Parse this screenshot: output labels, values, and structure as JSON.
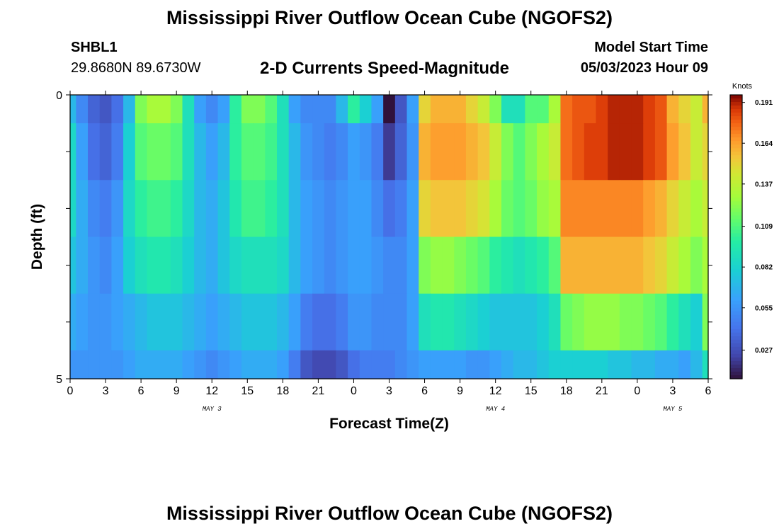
{
  "header": {
    "title": "Mississippi River Outflow Ocean Cube (NGOFS2)",
    "station": "SHBL1",
    "coordinates": "29.8680N  89.6730W",
    "subtitle": "2-D Currents Speed-Magnitude",
    "model_start_label": "Model Start Time",
    "model_start_value": "05/03/2023 Hour 09"
  },
  "footer": {
    "title": "Mississippi River Outflow Ocean Cube (NGOFS2)"
  },
  "chart_data": {
    "type": "heatmap",
    "xlabel": "Forecast Time(Z)",
    "ylabel": "Depth (ft)",
    "x_ticks": [
      "0",
      "3",
      "6",
      "9",
      "12",
      "15",
      "18",
      "21",
      "0",
      "3",
      "6",
      "9",
      "12",
      "15",
      "18",
      "21",
      "0",
      "3",
      "6"
    ],
    "day_labels": [
      {
        "label": "MAY 3",
        "hour": 12
      },
      {
        "label": "MAY 4",
        "hour": 36
      },
      {
        "label": "MAY 5",
        "hour": 51
      }
    ],
    "xlim": [
      0,
      54
    ],
    "ylim": [
      0,
      5
    ],
    "y_ticks": [
      "0",
      "5"
    ],
    "colorbar": {
      "title": "Knots",
      "ticks": [
        "0.191",
        "0.164",
        "0.137",
        "0.109",
        "0.082",
        "0.055",
        "0.027"
      ],
      "tick_values": [
        0.191,
        0.164,
        0.137,
        0.109,
        0.082,
        0.055,
        0.027
      ],
      "range": [
        0.008,
        0.196
      ]
    },
    "depth_layers": [
      0,
      0.5,
      1.5,
      2.5,
      3.5,
      4.5,
      5
    ],
    "hours": [
      0,
      1,
      2,
      3,
      4,
      5,
      6,
      7,
      8,
      9,
      10,
      11,
      12,
      13,
      14,
      15,
      16,
      17,
      18,
      19,
      20,
      21,
      22,
      23,
      24,
      25,
      26,
      27,
      28,
      29,
      30,
      31,
      32,
      33,
      34,
      35,
      36,
      37,
      38,
      39,
      40,
      41,
      42,
      43,
      44,
      45,
      46,
      47,
      48,
      49,
      50,
      51,
      52,
      53,
      54
    ],
    "speed": [
      [
        0.07,
        0.05,
        0.035,
        0.03,
        0.04,
        0.07,
        0.12,
        0.13,
        0.13,
        0.12,
        0.09,
        0.06,
        0.05,
        0.06,
        0.1,
        0.12,
        0.12,
        0.11,
        0.09,
        0.06,
        0.05,
        0.05,
        0.05,
        0.07,
        0.1,
        0.08,
        0.06,
        0.005,
        0.03,
        0.06,
        0.15,
        0.16,
        0.16,
        0.16,
        0.15,
        0.14,
        0.12,
        0.09,
        0.09,
        0.11,
        0.11,
        0.13,
        0.175,
        0.18,
        0.18,
        0.185,
        0.19,
        0.19,
        0.19,
        0.185,
        0.18,
        0.16,
        0.15,
        0.14,
        0.16
      ],
      [
        0.085,
        0.06,
        0.04,
        0.035,
        0.045,
        0.08,
        0.11,
        0.115,
        0.115,
        0.11,
        0.09,
        0.07,
        0.06,
        0.07,
        0.1,
        0.11,
        0.11,
        0.105,
        0.09,
        0.07,
        0.055,
        0.05,
        0.045,
        0.05,
        0.06,
        0.055,
        0.045,
        0.02,
        0.035,
        0.055,
        0.16,
        0.165,
        0.165,
        0.165,
        0.16,
        0.155,
        0.14,
        0.12,
        0.11,
        0.12,
        0.13,
        0.14,
        0.175,
        0.18,
        0.185,
        0.185,
        0.19,
        0.19,
        0.19,
        0.185,
        0.18,
        0.165,
        0.155,
        0.14,
        0.15
      ],
      [
        0.085,
        0.065,
        0.05,
        0.045,
        0.055,
        0.085,
        0.1,
        0.105,
        0.105,
        0.1,
        0.085,
        0.07,
        0.065,
        0.075,
        0.095,
        0.105,
        0.105,
        0.1,
        0.09,
        0.07,
        0.06,
        0.055,
        0.05,
        0.055,
        0.06,
        0.06,
        0.05,
        0.04,
        0.045,
        0.06,
        0.15,
        0.155,
        0.155,
        0.155,
        0.15,
        0.145,
        0.13,
        0.115,
        0.11,
        0.115,
        0.125,
        0.13,
        0.17,
        0.17,
        0.17,
        0.17,
        0.17,
        0.17,
        0.17,
        0.165,
        0.16,
        0.15,
        0.14,
        0.13,
        0.14
      ],
      [
        0.075,
        0.065,
        0.055,
        0.05,
        0.06,
        0.08,
        0.09,
        0.095,
        0.095,
        0.09,
        0.08,
        0.07,
        0.065,
        0.075,
        0.085,
        0.09,
        0.09,
        0.09,
        0.085,
        0.07,
        0.06,
        0.055,
        0.05,
        0.055,
        0.06,
        0.06,
        0.055,
        0.05,
        0.05,
        0.06,
        0.12,
        0.125,
        0.125,
        0.12,
        0.115,
        0.11,
        0.1,
        0.095,
        0.09,
        0.095,
        0.1,
        0.11,
        0.16,
        0.16,
        0.16,
        0.16,
        0.16,
        0.16,
        0.16,
        0.155,
        0.15,
        0.14,
        0.13,
        0.12,
        0.13
      ],
      [
        0.065,
        0.06,
        0.055,
        0.055,
        0.06,
        0.065,
        0.07,
        0.075,
        0.075,
        0.075,
        0.07,
        0.065,
        0.06,
        0.065,
        0.07,
        0.075,
        0.075,
        0.075,
        0.07,
        0.06,
        0.045,
        0.04,
        0.04,
        0.045,
        0.055,
        0.055,
        0.05,
        0.05,
        0.05,
        0.06,
        0.09,
        0.095,
        0.095,
        0.09,
        0.085,
        0.08,
        0.075,
        0.075,
        0.075,
        0.075,
        0.08,
        0.09,
        0.115,
        0.12,
        0.125,
        0.125,
        0.125,
        0.12,
        0.12,
        0.115,
        0.11,
        0.1,
        0.09,
        0.08,
        0.12
      ],
      [
        0.055,
        0.055,
        0.055,
        0.055,
        0.055,
        0.06,
        0.065,
        0.065,
        0.065,
        0.065,
        0.06,
        0.055,
        0.05,
        0.055,
        0.06,
        0.065,
        0.065,
        0.065,
        0.06,
        0.045,
        0.03,
        0.025,
        0.025,
        0.03,
        0.04,
        0.045,
        0.045,
        0.045,
        0.05,
        0.055,
        0.06,
        0.06,
        0.06,
        0.06,
        0.055,
        0.055,
        0.06,
        0.065,
        0.07,
        0.07,
        0.075,
        0.08,
        0.08,
        0.08,
        0.08,
        0.08,
        0.075,
        0.075,
        0.07,
        0.07,
        0.065,
        0.065,
        0.06,
        0.07,
        0.09
      ]
    ]
  }
}
